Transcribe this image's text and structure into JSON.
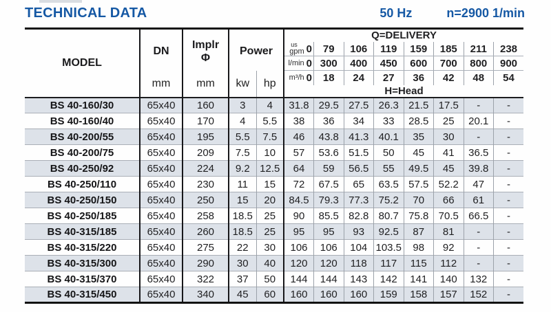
{
  "page": {
    "title": "TECHNICAL DATA",
    "frequency": "50 Hz",
    "speed": "n=2900 1/min",
    "colors": {
      "accent_blue": "#1558a4",
      "row_stripe": "#dde2e9"
    }
  },
  "table": {
    "headers": {
      "model": "MODEL",
      "dn": "DN",
      "implr_line1": "Implr",
      "implr_line2": "Φ",
      "power": "Power",
      "unit_mm_dn": "mm",
      "unit_mm_implr": "mm",
      "unit_kw": "kw",
      "unit_hp": "hp",
      "delivery": "Q=DELIVERY",
      "head": "H=Head"
    },
    "flow_rows": [
      {
        "unit_small": "us",
        "unit": "gpm",
        "zero": "0",
        "values": [
          "79",
          "106",
          "119",
          "159",
          "185",
          "211",
          "238"
        ]
      },
      {
        "unit_small": "",
        "unit": "l/min",
        "zero": "0",
        "values": [
          "300",
          "400",
          "450",
          "600",
          "700",
          "800",
          "900"
        ]
      },
      {
        "unit_small": "",
        "unit": "m³/h",
        "zero": "0",
        "values": [
          "18",
          "24",
          "27",
          "36",
          "42",
          "48",
          "54"
        ]
      }
    ],
    "rows": [
      {
        "model": "BS 40-160/30",
        "dn": "65x40",
        "implr": "160",
        "kw": "3",
        "hp": "4",
        "head": [
          "31.8",
          "29.5",
          "27.5",
          "26.3",
          "21.5",
          "17.5",
          "-",
          "-"
        ]
      },
      {
        "model": "BS 40-160/40",
        "dn": "65x40",
        "implr": "170",
        "kw": "4",
        "hp": "5.5",
        "head": [
          "38",
          "36",
          "34",
          "33",
          "28.5",
          "25",
          "20.1",
          "-"
        ]
      },
      {
        "model": "BS 40-200/55",
        "dn": "65x40",
        "implr": "195",
        "kw": "5.5",
        "hp": "7.5",
        "head": [
          "46",
          "43.8",
          "41.3",
          "40.1",
          "35",
          "30",
          "-",
          "-"
        ]
      },
      {
        "model": "BS 40-200/75",
        "dn": "65x40",
        "implr": "209",
        "kw": "7.5",
        "hp": "10",
        "head": [
          "57",
          "53.6",
          "51.5",
          "50",
          "45",
          "41",
          "36.5",
          "-"
        ]
      },
      {
        "model": "BS 40-250/92",
        "dn": "65x40",
        "implr": "224",
        "kw": "9.2",
        "hp": "12.5",
        "head": [
          "64",
          "59",
          "56.5",
          "55",
          "49.5",
          "45",
          "39.8",
          "-"
        ]
      },
      {
        "model": "BS 40-250/110",
        "dn": "65x40",
        "implr": "230",
        "kw": "11",
        "hp": "15",
        "head": [
          "72",
          "67.5",
          "65",
          "63.5",
          "57.5",
          "52.2",
          "47",
          "-"
        ]
      },
      {
        "model": "BS 40-250/150",
        "dn": "65x40",
        "implr": "250",
        "kw": "15",
        "hp": "20",
        "head": [
          "84.5",
          "79.3",
          "77.3",
          "75.2",
          "70",
          "66",
          "61",
          "-"
        ]
      },
      {
        "model": "BS 40-250/185",
        "dn": "65x40",
        "implr": "258",
        "kw": "18.5",
        "hp": "25",
        "head": [
          "90",
          "85.5",
          "82.8",
          "80.7",
          "75.8",
          "70.5",
          "66.5",
          "-"
        ]
      },
      {
        "model": "BS 40-315/185",
        "dn": "65x40",
        "implr": "260",
        "kw": "18.5",
        "hp": "25",
        "head": [
          "95",
          "95",
          "93",
          "92.5",
          "87",
          "81",
          "-",
          "-"
        ]
      },
      {
        "model": "BS 40-315/220",
        "dn": "65x40",
        "implr": "275",
        "kw": "22",
        "hp": "30",
        "head": [
          "106",
          "106",
          "104",
          "103.5",
          "98",
          "92",
          "-",
          "-"
        ]
      },
      {
        "model": "BS 40-315/300",
        "dn": "65x40",
        "implr": "290",
        "kw": "30",
        "hp": "40",
        "head": [
          "120",
          "120",
          "118",
          "117",
          "115",
          "112",
          "-",
          "-"
        ]
      },
      {
        "model": "BS 40-315/370",
        "dn": "65x40",
        "implr": "322",
        "kw": "37",
        "hp": "50",
        "head": [
          "144",
          "144",
          "143",
          "142",
          "141",
          "140",
          "132",
          "-"
        ]
      },
      {
        "model": "BS 40-315/450",
        "dn": "65x40",
        "implr": "340",
        "kw": "45",
        "hp": "60",
        "head": [
          "160",
          "160",
          "160",
          "159",
          "158",
          "157",
          "152",
          "-"
        ]
      }
    ]
  }
}
